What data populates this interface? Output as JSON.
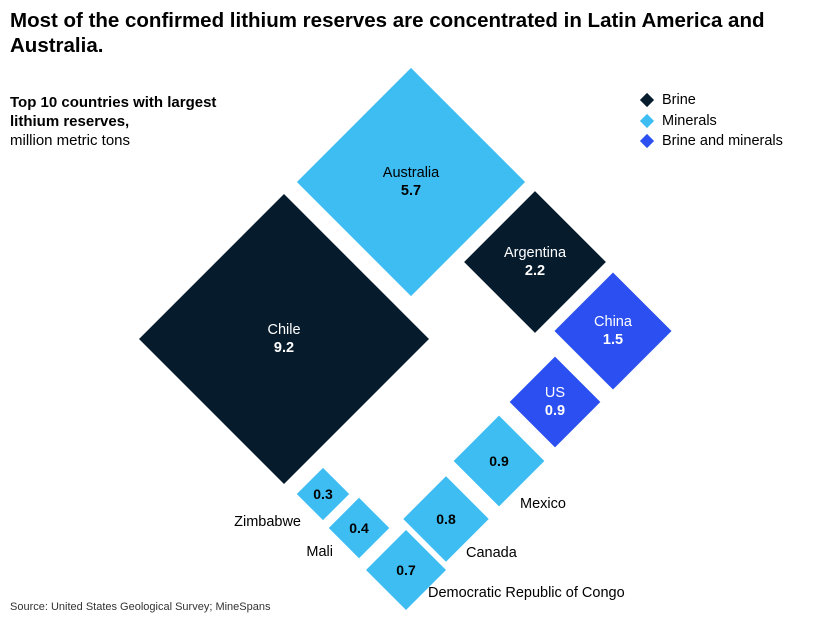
{
  "title": "Most of the confirmed lithium reserves are concentrated in Latin America and Australia.",
  "subtitle_bold": "Top 10 countries with largest lithium reserves,",
  "subtitle_unit": "million metric tons",
  "source": "Source: United States Geological Survey; MineSpans",
  "colors": {
    "brine": "#061b2c",
    "minerals": "#3dbdf2",
    "brine_and_minerals": "#2b4ff0"
  },
  "chart_data": {
    "type": "diamond-area",
    "unit": "million metric tons",
    "legend": [
      {
        "label": "Brine",
        "type": "brine"
      },
      {
        "label": "Minerals",
        "type": "minerals"
      },
      {
        "label": "Brine and minerals",
        "type": "brine_and_minerals"
      }
    ],
    "points": [
      {
        "country": "Chile",
        "value": 9.2,
        "type": "brine"
      },
      {
        "country": "Australia",
        "value": 5.7,
        "type": "minerals"
      },
      {
        "country": "Argentina",
        "value": 2.2,
        "type": "brine"
      },
      {
        "country": "China",
        "value": 1.5,
        "type": "brine_and_minerals"
      },
      {
        "country": "US",
        "value": 0.9,
        "type": "brine_and_minerals"
      },
      {
        "country": "Mexico",
        "value": 0.9,
        "type": "minerals"
      },
      {
        "country": "Canada",
        "value": 0.8,
        "type": "minerals"
      },
      {
        "country": "Democratic Republic of Congo",
        "value": 0.7,
        "type": "minerals"
      },
      {
        "country": "Mali",
        "value": 0.4,
        "type": "minerals"
      },
      {
        "country": "Zimbabwe",
        "value": 0.3,
        "type": "minerals"
      }
    ]
  }
}
